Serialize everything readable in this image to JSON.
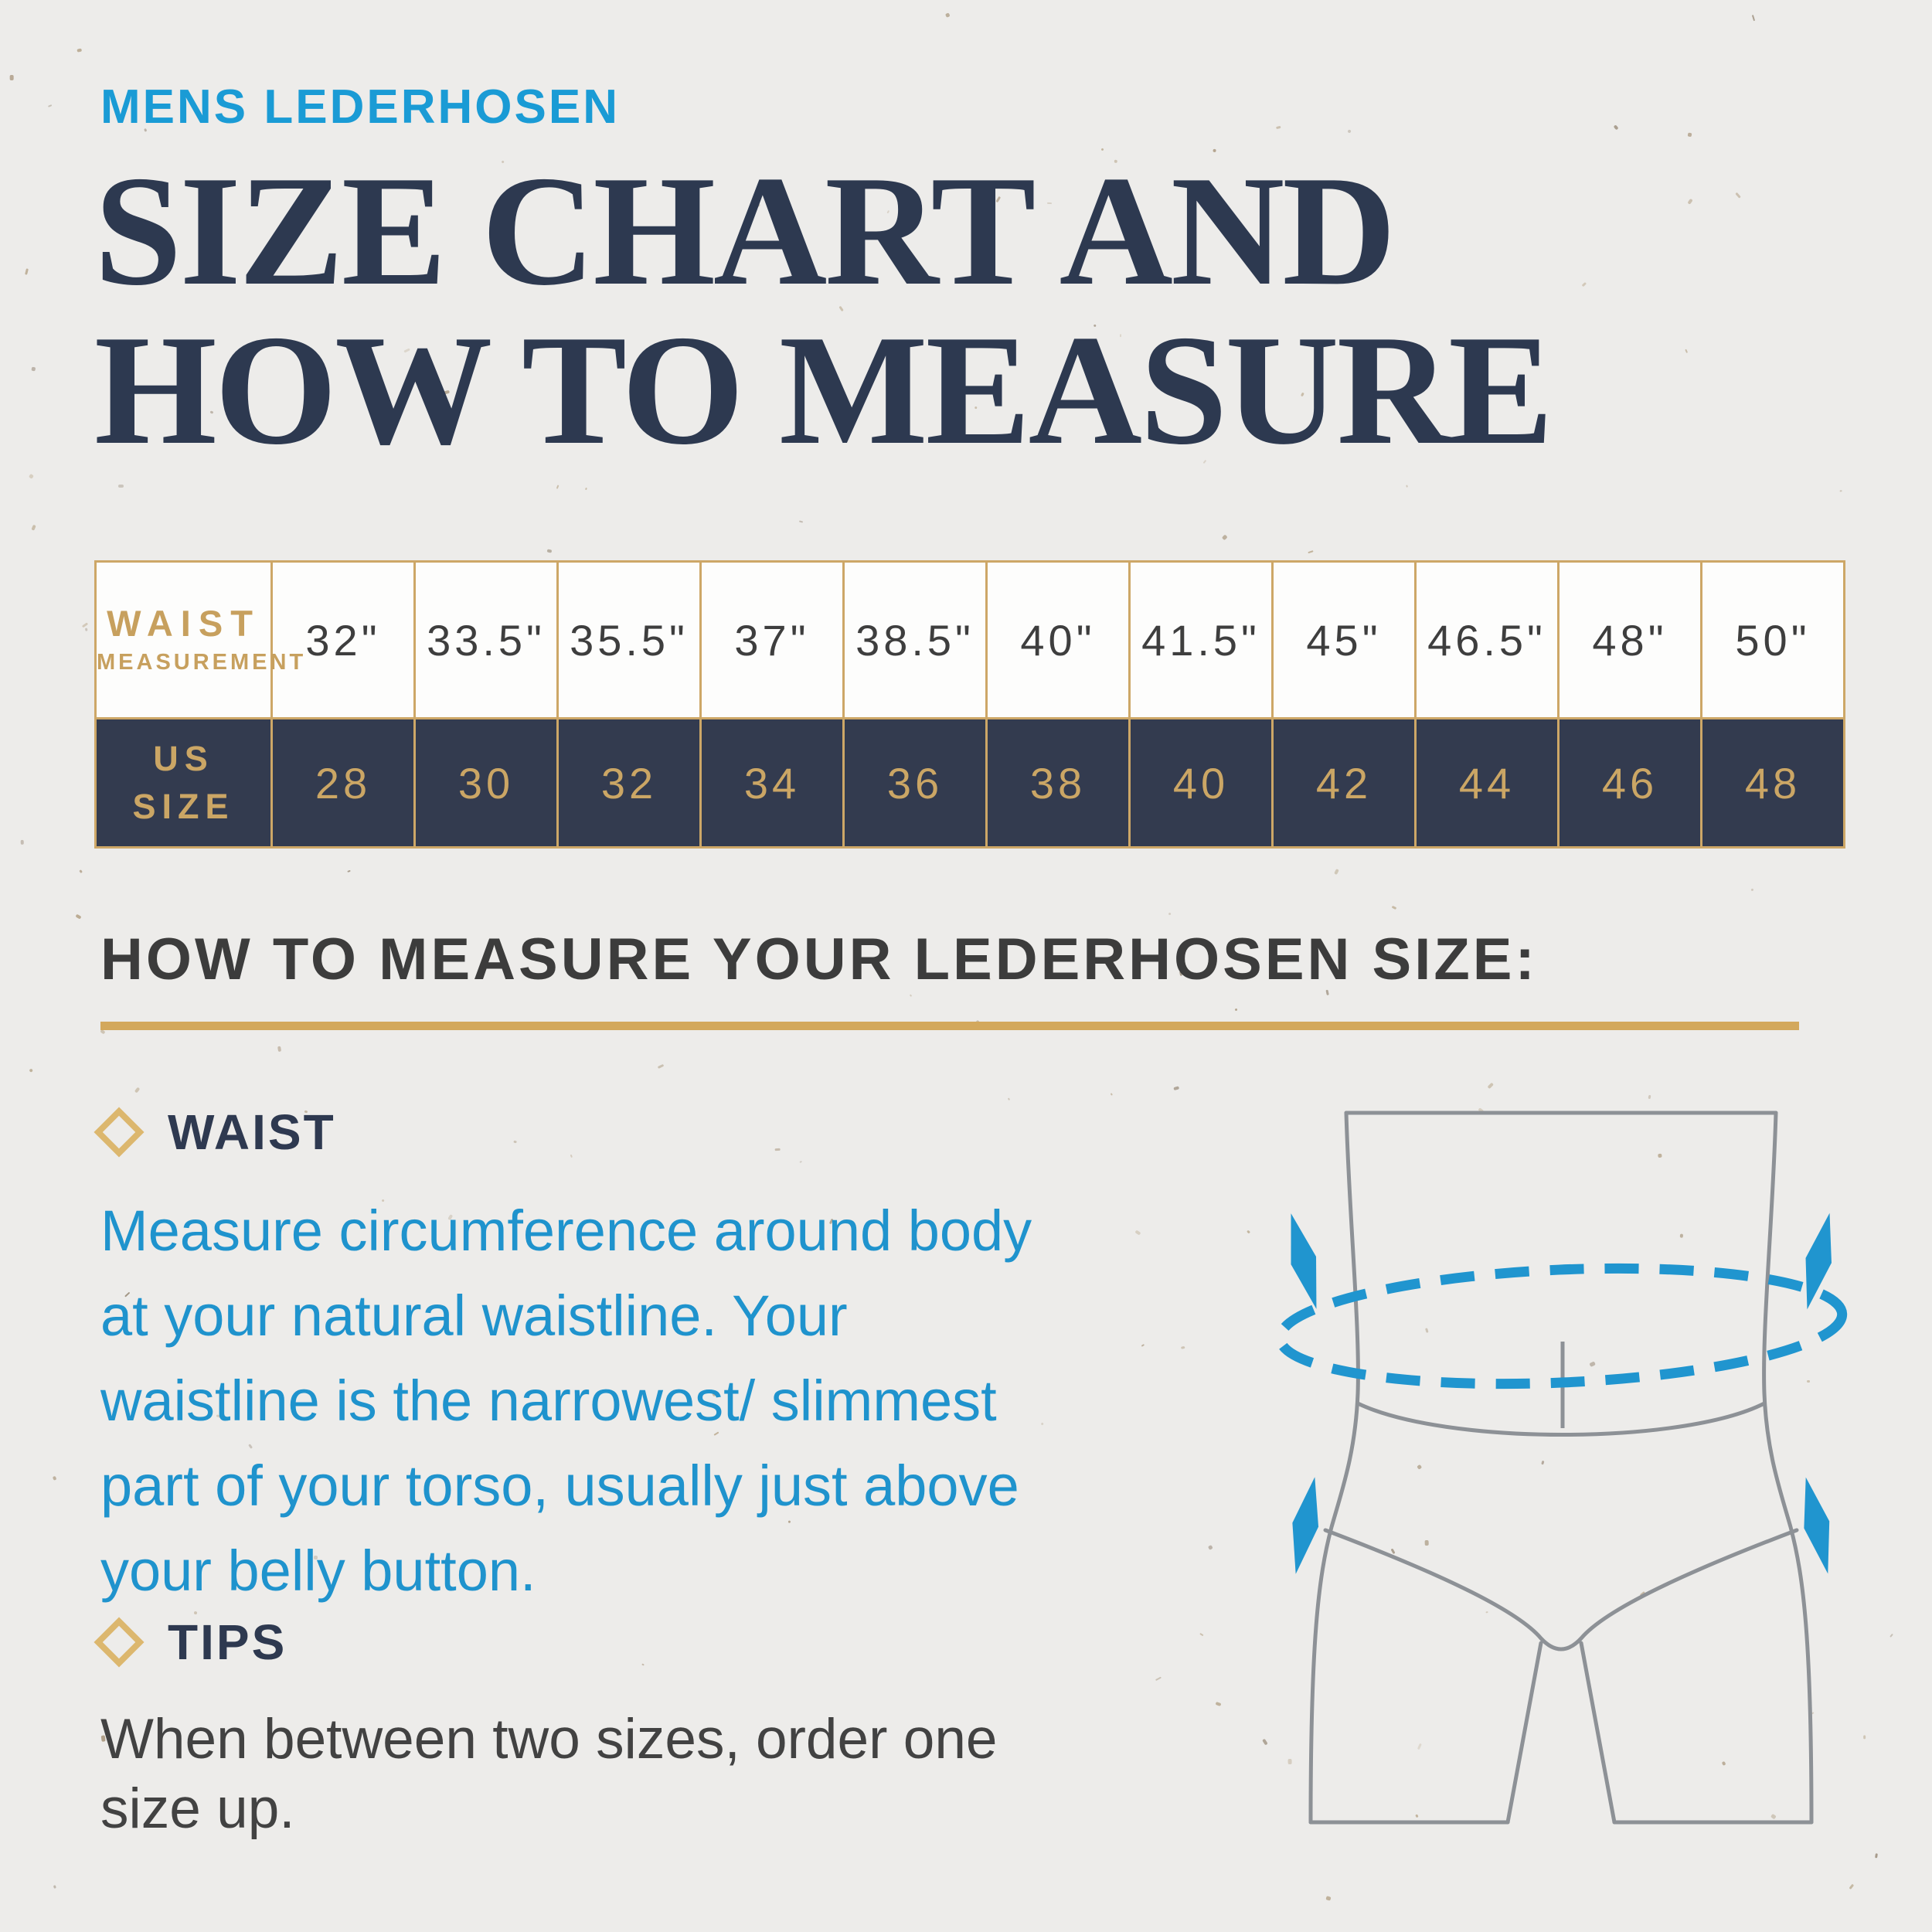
{
  "page": {
    "eyebrow": "MENS LEDERHOSEN",
    "title": "SIZE CHART AND\nHOW TO MEASURE"
  },
  "size_table": {
    "waist_header_line1": "WAIST",
    "waist_header_line2": "MEASUREMENT",
    "us_size_header": "US\nSIZE",
    "waist_values": [
      "32\"",
      "33.5\"",
      "35.5\"",
      "37\"",
      "38.5\"",
      "40\"",
      "41.5\"",
      "45\"",
      "46.5\"",
      "48\"",
      "50\""
    ],
    "us_sizes": [
      "28",
      "30",
      "32",
      "34",
      "36",
      "38",
      "40",
      "42",
      "44",
      "46",
      "48"
    ]
  },
  "chart_data": {
    "type": "table",
    "title": "Mens Lederhosen Size Chart",
    "columns": [
      "Waist Measurement",
      "US Size"
    ],
    "rows": [
      [
        "32\"",
        "28"
      ],
      [
        "33.5\"",
        "30"
      ],
      [
        "35.5\"",
        "32"
      ],
      [
        "37\"",
        "34"
      ],
      [
        "38.5\"",
        "36"
      ],
      [
        "40\"",
        "38"
      ],
      [
        "41.5\"",
        "40"
      ],
      [
        "45\"",
        "42"
      ],
      [
        "46.5\"",
        "44"
      ],
      [
        "48\"",
        "46"
      ],
      [
        "50\"",
        "48"
      ]
    ]
  },
  "how_to": {
    "heading": "HOW TO MEASURE YOUR LEDERHOSEN SIZE:",
    "sections": [
      {
        "label": "WAIST",
        "body": "Measure circumference around body\nat your natural waistline. Your\nwaistline is the narrowest/ slimmest\npart of your torso, usually just above\nyour belly button."
      },
      {
        "label": "TIPS",
        "body": "When between two sizes, order one\nsize up."
      }
    ]
  },
  "colors": {
    "paper": "#edecea",
    "accent_blue": "#1a9bd5",
    "body_blue": "#1f93cd",
    "navy": "#2d3950",
    "table_navy": "#333b4f",
    "gold_border": "#cda767",
    "gold_text": "#c7a05e",
    "gold_rule": "#d3a85c",
    "diamond_gold": "#dcb76e",
    "gray_text": "#3c3c3c",
    "line_gray": "#8d9196"
  }
}
